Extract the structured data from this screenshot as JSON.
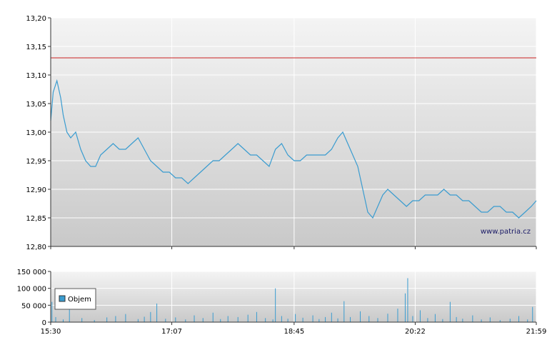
{
  "watermark": "www.patria.cz",
  "colors": {
    "price_line": "#3a9cd0",
    "reference_line": "#cc2222",
    "volume_bar": "#3a9cd0"
  },
  "chart_data": [
    {
      "type": "line",
      "name": "price",
      "ylim": [
        12.8,
        13.2
      ],
      "y_ticks": [
        "13,20",
        "13,15",
        "13,10",
        "13,05",
        "13,00",
        "12,95",
        "12,90",
        "12,85",
        "12,80"
      ],
      "y_tick_values": [
        13.2,
        13.15,
        13.1,
        13.05,
        13.0,
        12.95,
        12.9,
        12.85,
        12.8
      ],
      "x_ticks": [
        "15:30",
        "17:07",
        "18:45",
        "20:22",
        "21:59"
      ],
      "reference_value": 13.13,
      "grid": true,
      "series": [
        {
          "points": [
            [
              "15:30",
              13.02
            ],
            [
              "15:32",
              13.07
            ],
            [
              "15:35",
              13.09
            ],
            [
              "15:38",
              13.06
            ],
            [
              "15:40",
              13.03
            ],
            [
              "15:43",
              13.0
            ],
            [
              "15:46",
              12.99
            ],
            [
              "15:50",
              13.0
            ],
            [
              "15:54",
              12.97
            ],
            [
              "15:58",
              12.95
            ],
            [
              "16:02",
              12.94
            ],
            [
              "16:06",
              12.94
            ],
            [
              "16:10",
              12.96
            ],
            [
              "16:15",
              12.97
            ],
            [
              "16:20",
              12.98
            ],
            [
              "16:25",
              12.97
            ],
            [
              "16:30",
              12.97
            ],
            [
              "16:35",
              12.98
            ],
            [
              "16:40",
              12.99
            ],
            [
              "16:45",
              12.97
            ],
            [
              "16:50",
              12.95
            ],
            [
              "16:55",
              12.94
            ],
            [
              "17:00",
              12.93
            ],
            [
              "17:05",
              12.93
            ],
            [
              "17:10",
              12.92
            ],
            [
              "17:15",
              12.92
            ],
            [
              "17:20",
              12.91
            ],
            [
              "17:25",
              12.92
            ],
            [
              "17:30",
              12.93
            ],
            [
              "17:35",
              12.94
            ],
            [
              "17:40",
              12.95
            ],
            [
              "17:45",
              12.95
            ],
            [
              "17:50",
              12.96
            ],
            [
              "17:55",
              12.97
            ],
            [
              "18:00",
              12.98
            ],
            [
              "18:05",
              12.97
            ],
            [
              "18:10",
              12.96
            ],
            [
              "18:15",
              12.96
            ],
            [
              "18:20",
              12.95
            ],
            [
              "18:25",
              12.94
            ],
            [
              "18:30",
              12.97
            ],
            [
              "18:35",
              12.98
            ],
            [
              "18:40",
              12.96
            ],
            [
              "18:45",
              12.95
            ],
            [
              "18:50",
              12.95
            ],
            [
              "18:55",
              12.96
            ],
            [
              "19:00",
              12.96
            ],
            [
              "19:05",
              12.96
            ],
            [
              "19:10",
              12.96
            ],
            [
              "19:15",
              12.97
            ],
            [
              "19:20",
              12.99
            ],
            [
              "19:24",
              13.0
            ],
            [
              "19:28",
              12.98
            ],
            [
              "19:32",
              12.96
            ],
            [
              "19:36",
              12.94
            ],
            [
              "19:40",
              12.9
            ],
            [
              "19:44",
              12.86
            ],
            [
              "19:48",
              12.85
            ],
            [
              "19:52",
              12.87
            ],
            [
              "19:56",
              12.89
            ],
            [
              "20:00",
              12.9
            ],
            [
              "20:05",
              12.89
            ],
            [
              "20:10",
              12.88
            ],
            [
              "20:15",
              12.87
            ],
            [
              "20:20",
              12.88
            ],
            [
              "20:25",
              12.88
            ],
            [
              "20:30",
              12.89
            ],
            [
              "20:35",
              12.89
            ],
            [
              "20:40",
              12.89
            ],
            [
              "20:45",
              12.9
            ],
            [
              "20:50",
              12.89
            ],
            [
              "20:55",
              12.89
            ],
            [
              "21:00",
              12.88
            ],
            [
              "21:05",
              12.88
            ],
            [
              "21:10",
              12.87
            ],
            [
              "21:15",
              12.86
            ],
            [
              "21:20",
              12.86
            ],
            [
              "21:25",
              12.87
            ],
            [
              "21:30",
              12.87
            ],
            [
              "21:35",
              12.86
            ],
            [
              "21:40",
              12.86
            ],
            [
              "21:45",
              12.85
            ],
            [
              "21:50",
              12.86
            ],
            [
              "21:55",
              12.87
            ],
            [
              "21:59",
              12.88
            ]
          ]
        }
      ]
    },
    {
      "type": "bar",
      "name": "volume",
      "legend": "Objem",
      "ylim": [
        0,
        150000
      ],
      "y_ticks": [
        "150 000",
        "100 000",
        "50 000",
        "0"
      ],
      "y_tick_values": [
        150000,
        100000,
        50000,
        0
      ],
      "x_ticks": [
        "15:30",
        "17:07",
        "18:45",
        "20:22",
        "21:59"
      ],
      "grid": true,
      "series": [
        {
          "points": [
            [
              "15:31",
              60000
            ],
            [
              "15:34",
              15000
            ],
            [
              "15:40",
              8000
            ],
            [
              "15:45",
              70000
            ],
            [
              "15:55",
              12000
            ],
            [
              "16:05",
              6000
            ],
            [
              "16:15",
              14000
            ],
            [
              "16:22",
              18000
            ],
            [
              "16:30",
              24000
            ],
            [
              "16:40",
              9000
            ],
            [
              "16:45",
              16000
            ],
            [
              "16:50",
              30000
            ],
            [
              "16:55",
              55000
            ],
            [
              "17:02",
              10000
            ],
            [
              "17:10",
              14000
            ],
            [
              "17:18",
              8000
            ],
            [
              "17:25",
              20000
            ],
            [
              "17:32",
              12000
            ],
            [
              "17:40",
              28000
            ],
            [
              "17:46",
              9000
            ],
            [
              "17:52",
              18000
            ],
            [
              "18:00",
              15000
            ],
            [
              "18:08",
              22000
            ],
            [
              "18:15",
              30000
            ],
            [
              "18:22",
              12000
            ],
            [
              "18:28",
              8000
            ],
            [
              "18:30",
              100000
            ],
            [
              "18:35",
              18000
            ],
            [
              "18:40",
              10000
            ],
            [
              "18:46",
              24000
            ],
            [
              "18:52",
              13000
            ],
            [
              "19:00",
              20000
            ],
            [
              "19:05",
              9000
            ],
            [
              "19:10",
              15000
            ],
            [
              "19:15",
              28000
            ],
            [
              "19:20",
              11000
            ],
            [
              "19:25",
              62000
            ],
            [
              "19:30",
              15000
            ],
            [
              "19:38",
              32000
            ],
            [
              "19:45",
              18000
            ],
            [
              "19:52",
              12000
            ],
            [
              "20:00",
              25000
            ],
            [
              "20:08",
              40000
            ],
            [
              "20:14",
              85000
            ],
            [
              "20:16",
              130000
            ],
            [
              "20:20",
              18000
            ],
            [
              "20:26",
              35000
            ],
            [
              "20:32",
              12000
            ],
            [
              "20:38",
              24000
            ],
            [
              "20:44",
              9000
            ],
            [
              "20:50",
              60000
            ],
            [
              "20:55",
              15000
            ],
            [
              "21:00",
              10000
            ],
            [
              "21:08",
              20000
            ],
            [
              "21:15",
              8000
            ],
            [
              "21:22",
              14000
            ],
            [
              "21:30",
              6000
            ],
            [
              "21:38",
              10000
            ],
            [
              "21:45",
              18000
            ],
            [
              "21:52",
              8000
            ],
            [
              "21:56",
              45000
            ]
          ]
        }
      ]
    }
  ]
}
